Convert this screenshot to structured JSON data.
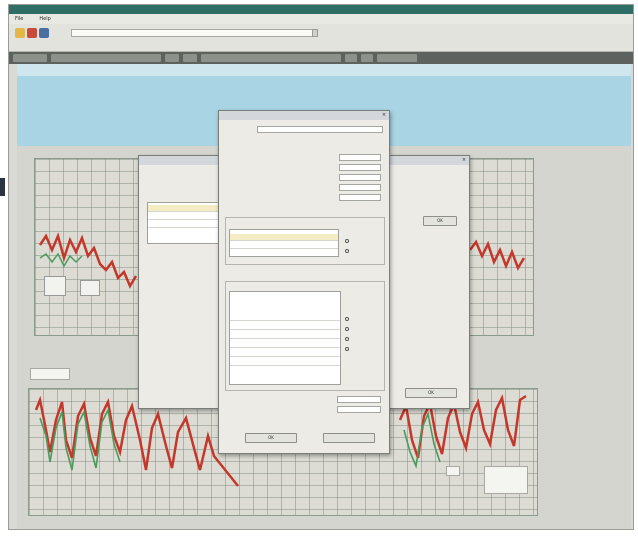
{
  "menubar": {
    "items": [
      "File",
      "",
      "Help"
    ]
  },
  "toolbar": {
    "path_value": "",
    "row2_label": ""
  },
  "colors": {
    "accent_top": "#2f6e64",
    "curve_red": "#c4372b",
    "curve_green": "#4c9a5c",
    "dialog_bg": "#ecebe6"
  },
  "icons": [
    "folder-icon",
    "open-icon",
    "save-icon",
    "chevron-down-icon",
    "close-icon"
  ],
  "back_dialog": {
    "title": "",
    "list_items": [
      "",
      "",
      ""
    ],
    "ok_label": "OK"
  },
  "front_dialog": {
    "title": "",
    "name_label": "",
    "name_value": "",
    "fields": [
      {
        "label": "",
        "value": ""
      },
      {
        "label": "",
        "value": ""
      },
      {
        "label": "",
        "value": ""
      },
      {
        "label": "",
        "value": ""
      },
      {
        "label": "",
        "value": ""
      }
    ],
    "top_table": {
      "rows": [
        {
          "id": "",
          "name": "",
          "value": ""
        },
        {
          "id": "",
          "name": "",
          "value": ""
        }
      ]
    },
    "radio_top": [
      "",
      ""
    ],
    "section2_label": "",
    "bottom_table": {
      "rows": [
        {
          "id": "",
          "duration": "",
          "value": ""
        },
        {
          "id": "",
          "duration": "",
          "value": ""
        },
        {
          "id": "",
          "duration": "",
          "value": ""
        },
        {
          "id": "",
          "duration": "",
          "value": ""
        },
        {
          "id": "",
          "duration": "",
          "value": ""
        },
        {
          "id": "",
          "duration": "",
          "value": ""
        }
      ]
    },
    "radio_bottom": [
      "",
      "",
      "",
      ""
    ],
    "footer_fields": [
      {
        "label": "",
        "value": ""
      },
      {
        "label": "",
        "value": ""
      }
    ],
    "ok_label": "OK",
    "cancel_label": ""
  },
  "main_ok_label": "OK"
}
